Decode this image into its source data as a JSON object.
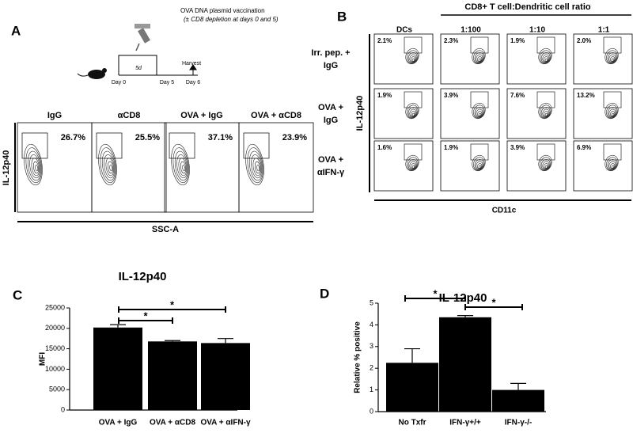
{
  "panel_a": {
    "label": "A",
    "timeline": {
      "title": "OVA DNA plasmid vaccination",
      "subtitle": "(± CD8 depletion at days 0 and 5)",
      "harvest": "Harvest",
      "days": [
        "Day 0",
        "Day 5",
        "Day 6"
      ],
      "interval": "5d"
    },
    "plots": [
      {
        "label": "IgG",
        "percent": "26.7%"
      },
      {
        "label": "αCD8",
        "percent": "25.5%"
      },
      {
        "label": "OVA + IgG",
        "percent": "37.1%"
      },
      {
        "label": "OVA + αCD8",
        "percent": "23.9%"
      }
    ],
    "y_label": "IL-12p40",
    "x_label": "SSC-A"
  },
  "panel_b": {
    "label": "B",
    "header": "CD8+ T cell:Dendritic cell ratio",
    "columns": [
      "DCs",
      "1:100",
      "1:10",
      "1:1"
    ],
    "rows": [
      {
        "label": [
          "Irr. pep. +",
          "IgG"
        ],
        "percents": [
          "2.1%",
          "2.3%",
          "1.9%",
          "2.0%"
        ]
      },
      {
        "label": [
          "OVA +",
          "IgG"
        ],
        "percents": [
          "1.9%",
          "3.9%",
          "7.6%",
          "13.2%"
        ]
      },
      {
        "label": [
          "OVA +",
          "αIFN-γ"
        ],
        "percents": [
          "1.6%",
          "1.9%",
          "3.9%",
          "6.9%"
        ]
      }
    ],
    "y_label": "IL-12p40",
    "x_label": "CD11c"
  },
  "chart_data": [
    {
      "type": "bar",
      "panel_label": "C",
      "title": "IL-12p40",
      "y_label": "MFI",
      "categories": [
        "OVA + IgG",
        "OVA + αCD8",
        "OVA + αIFN-γ"
      ],
      "values": [
        20200,
        16800,
        16400
      ],
      "errors": [
        700,
        200,
        1100
      ],
      "color": "#000000",
      "ylim": [
        0,
        25000
      ],
      "yticks": [
        0,
        5000,
        10000,
        15000,
        20000,
        25000
      ],
      "annotations": [
        "*",
        "*"
      ]
    },
    {
      "type": "bar",
      "panel_label": "D",
      "title": "IL-12p40",
      "y_label": "Relative % positive",
      "categories": [
        "No Txfr",
        "IFN-γ+/+",
        "IFN-γ-/-"
      ],
      "values": [
        2.25,
        4.35,
        1.0
      ],
      "errors": [
        0.65,
        0.08,
        0.3
      ],
      "color": "#000000",
      "ylim": [
        0,
        5
      ],
      "yticks": [
        0,
        1,
        2,
        3,
        4,
        5
      ],
      "annotations": [
        "*",
        "*"
      ]
    }
  ]
}
